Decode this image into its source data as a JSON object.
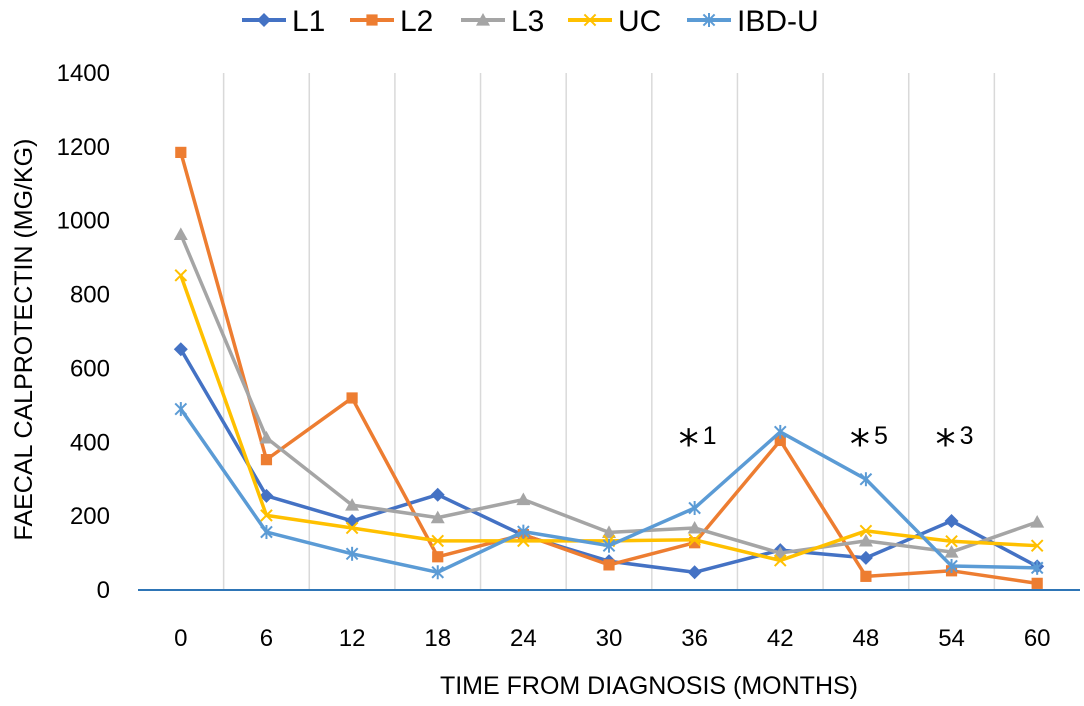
{
  "chart_data": {
    "type": "line",
    "title": "",
    "xlabel": "TIME FROM DIAGNOSIS (MONTHS)",
    "ylabel": "FAECAL CALPROTECTIN (MG/KG)",
    "x": [
      0,
      6,
      12,
      18,
      24,
      30,
      36,
      42,
      48,
      54,
      60
    ],
    "ylim": [
      0,
      1400
    ],
    "yticks": [
      0,
      200,
      400,
      600,
      800,
      1000,
      1200,
      1400
    ],
    "grid": "vertical",
    "legend_position": "top",
    "series": [
      {
        "name": "L1",
        "color": "#4472C4",
        "marker": "diamond",
        "values": [
          652,
          255,
          187,
          258,
          148,
          78,
          48,
          108,
          87,
          187,
          64
        ]
      },
      {
        "name": "L2",
        "color": "#ED7D31",
        "marker": "square",
        "values": [
          1185,
          353,
          520,
          90,
          150,
          68,
          128,
          405,
          37,
          52,
          18
        ]
      },
      {
        "name": "L3",
        "color": "#A5A5A5",
        "marker": "triangle",
        "values": [
          963,
          412,
          230,
          196,
          245,
          156,
          168,
          100,
          133,
          103,
          184
        ]
      },
      {
        "name": "UC",
        "color": "#FFC000",
        "marker": "x",
        "values": [
          852,
          202,
          168,
          133,
          133,
          133,
          136,
          80,
          160,
          132,
          120
        ]
      },
      {
        "name": "IBD-U",
        "color": "#5B9BD5",
        "marker": "asterisk",
        "values": [
          490,
          157,
          98,
          48,
          158,
          120,
          222,
          428,
          300,
          65,
          60
        ]
      }
    ],
    "annotations": [
      {
        "x": 36,
        "star": "*",
        "label": "1"
      },
      {
        "x": 48,
        "star": "*",
        "label": "5"
      },
      {
        "x": 54,
        "star": "*",
        "label": "3"
      }
    ]
  }
}
